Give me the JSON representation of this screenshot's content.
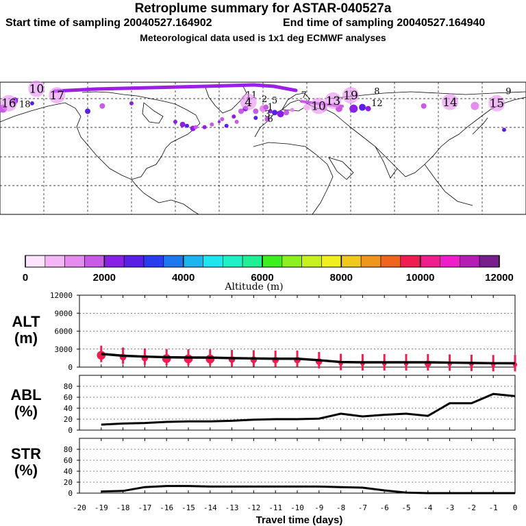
{
  "header": {
    "title": "Retroplume summary for ASTAR-040527a",
    "start": "Start time of sampling 20040527.164902",
    "end": "End time of sampling 20040527.164940",
    "meteo": "Meteorological data used is 1x1 deg ECMWF analyses"
  },
  "map": {
    "labels": [
      {
        "text": "16",
        "lon": -174,
        "lat": 72
      },
      {
        "text": "18",
        "lon": -163,
        "lat": 72
      },
      {
        "text": "10",
        "lon": -155,
        "lat": 83
      },
      {
        "text": "17",
        "lon": -141,
        "lat": 78
      },
      {
        "text": "11",
        "lon": -8,
        "lat": 79
      },
      {
        "text": "4",
        "lon": -10,
        "lat": 73
      },
      {
        "text": "2",
        "lon": 1,
        "lat": 76
      },
      {
        "text": "5",
        "lon": 8,
        "lat": 75
      },
      {
        "text": "1",
        "lon": 5,
        "lat": 70
      },
      {
        "text": "3",
        "lon": 3,
        "lat": 65
      },
      {
        "text": "6",
        "lon": 5,
        "lat": 61
      },
      {
        "text": "7",
        "lon": 28,
        "lat": 79
      },
      {
        "text": "10",
        "lon": 38,
        "lat": 70
      },
      {
        "text": "13",
        "lon": 48,
        "lat": 74
      },
      {
        "text": "19",
        "lon": 60,
        "lat": 78
      },
      {
        "text": "8",
        "lon": 78,
        "lat": 82
      },
      {
        "text": "12",
        "lon": 78,
        "lat": 73
      },
      {
        "text": "14",
        "lon": 128,
        "lat": 73
      },
      {
        "text": "15",
        "lon": 160,
        "lat": 72
      },
      {
        "text": "9",
        "lon": 168,
        "lat": 82
      }
    ]
  },
  "colorbar": {
    "ticks": [
      "0",
      "2000",
      "4000",
      "6000",
      "8000",
      "10000",
      "12000"
    ],
    "title": "Altitude (m)",
    "colors": [
      "#fde3fb",
      "#f4b6f4",
      "#e68cf0",
      "#c95ae6",
      "#8a1fe6",
      "#5a1fe6",
      "#2a3cf0",
      "#1e78f0",
      "#1eb4f0",
      "#1ee6f0",
      "#1ef0c8",
      "#1ef096",
      "#3cf01e",
      "#8cf01e",
      "#c8f01e",
      "#f0f01e",
      "#f0c81e",
      "#f0961e",
      "#f0641e",
      "#f01e50",
      "#f01e8c",
      "#f01ec8",
      "#b41eb4",
      "#781e8c"
    ]
  },
  "chart_data": [
    {
      "type": "line",
      "panel": "ALT",
      "ylabel_top": "ALT",
      "ylabel_bottom": "(m)",
      "ylim": [
        0,
        12000
      ],
      "yticks": [
        "12000",
        "9000",
        "6000",
        "3000",
        "0"
      ],
      "x": [
        -19,
        -18,
        -17,
        -16,
        -15,
        -14,
        -13,
        -12,
        -11,
        -10,
        -9,
        -8,
        -7,
        -6,
        -5,
        -4,
        -3,
        -2,
        -1,
        0
      ],
      "mean": [
        2200,
        1900,
        1750,
        1650,
        1600,
        1580,
        1500,
        1450,
        1400,
        1400,
        1150,
        850,
        800,
        800,
        800,
        800,
        750,
        700,
        650,
        650
      ],
      "point_size": [
        4,
        3,
        3,
        4,
        4,
        4,
        3,
        3,
        3,
        3,
        3,
        2,
        2,
        2,
        2,
        3,
        2,
        2,
        2,
        2
      ]
    },
    {
      "type": "line",
      "panel": "ABL",
      "ylabel_top": "ABL",
      "ylabel_bottom": "(%)",
      "ylim": [
        0,
        100
      ],
      "yticks": [
        "80",
        "60",
        "40",
        "20",
        "0"
      ],
      "x": [
        -19,
        -18,
        -17,
        -16,
        -15,
        -14,
        -13,
        -12,
        -11,
        -10,
        -9,
        -8,
        -7,
        -6,
        -5,
        -4,
        -3,
        -2,
        -1,
        0
      ],
      "values": [
        10,
        12,
        13,
        15,
        16,
        16,
        17,
        19,
        20,
        20,
        21,
        30,
        25,
        28,
        30,
        26,
        49,
        49,
        66,
        62
      ]
    },
    {
      "type": "line",
      "panel": "STR",
      "ylabel_top": "STR",
      "ylabel_bottom": "(%)",
      "ylim": [
        0,
        100
      ],
      "yticks": [
        "80",
        "60",
        "40",
        "20",
        "0"
      ],
      "x": [
        -19,
        -18,
        -17,
        -16,
        -15,
        -14,
        -13,
        -12,
        -11,
        -10,
        -9,
        -8,
        -7,
        -6,
        -5,
        -4,
        -3,
        -2,
        -1,
        0
      ],
      "values": [
        3,
        4,
        11,
        13,
        13,
        12,
        12,
        12,
        12,
        12,
        12,
        11,
        10,
        5,
        1,
        0,
        0,
        0,
        0,
        0
      ],
      "xticks": [
        "-20",
        "-19",
        "-18",
        "-17",
        "-16",
        "-15",
        "-14",
        "-13",
        "-12",
        "-11",
        "-10",
        "-9",
        "-8",
        "-7",
        "-6",
        "-5",
        "-4",
        "-3",
        "-2",
        "-1",
        "0"
      ],
      "xlabel": "Travel time (days)"
    }
  ]
}
